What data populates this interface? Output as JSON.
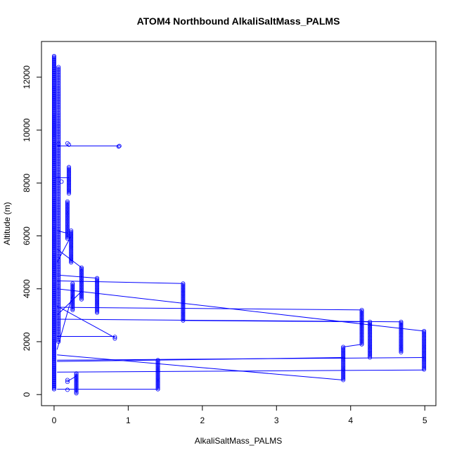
{
  "chart_data": {
    "type": "scatter",
    "title": "ATOM4 Northbound AlkaliSaltMass_PALMS",
    "xlabel": "AlkaliSaltMass_PALMS",
    "ylabel": "Altitude (m)",
    "xlim": [
      -0.17,
      5.15
    ],
    "ylim": [
      -420,
      13350
    ],
    "xticks": [
      0,
      1,
      2,
      3,
      4,
      5
    ],
    "yticks": [
      0,
      2000,
      4000,
      6000,
      8000,
      10000,
      12000
    ],
    "grid": false,
    "legend": "none",
    "color": "#0000ff",
    "marker": "open-circle",
    "connected_lines": true,
    "clusters": [
      {
        "x": 0.0,
        "y_min": 200,
        "y_max": 12800,
        "step": 40
      },
      {
        "x": 0.06,
        "y_min": 2000,
        "y_max": 12400,
        "step": 60
      },
      {
        "x": 0.2,
        "y_min": 7600,
        "y_max": 8600,
        "step": 50
      },
      {
        "x": 0.18,
        "y_min": 5900,
        "y_max": 7300,
        "step": 50
      },
      {
        "x": 0.23,
        "y_min": 5000,
        "y_max": 6200,
        "step": 50
      },
      {
        "x": 0.25,
        "y_min": 3200,
        "y_max": 4200,
        "step": 50
      },
      {
        "x": 0.37,
        "y_min": 3600,
        "y_max": 4800,
        "step": 50
      },
      {
        "x": 0.58,
        "y_min": 3100,
        "y_max": 4400,
        "step": 50
      },
      {
        "x": 0.3,
        "y_min": 50,
        "y_max": 800,
        "step": 50
      },
      {
        "x": 1.4,
        "y_min": 200,
        "y_max": 1300,
        "step": 50
      },
      {
        "x": 1.74,
        "y_min": 2800,
        "y_max": 4200,
        "step": 50
      },
      {
        "x": 3.9,
        "y_min": 550,
        "y_max": 1800,
        "step": 50
      },
      {
        "x": 4.15,
        "y_min": 1900,
        "y_max": 3200,
        "step": 50
      },
      {
        "x": 4.26,
        "y_min": 1400,
        "y_max": 2750,
        "step": 50
      },
      {
        "x": 4.68,
        "y_min": 1600,
        "y_max": 2750,
        "step": 50
      },
      {
        "x": 4.99,
        "y_min": 950,
        "y_max": 2400,
        "step": 50
      }
    ],
    "points": [
      {
        "x": 0.88,
        "y": 9400
      },
      {
        "x": 0.87,
        "y": 9380
      },
      {
        "x": 0.2,
        "y": 9450
      },
      {
        "x": 0.18,
        "y": 9500
      },
      {
        "x": 0.1,
        "y": 8050
      },
      {
        "x": 0.82,
        "y": 2180
      },
      {
        "x": 0.82,
        "y": 2120
      },
      {
        "x": 0.18,
        "y": 550
      },
      {
        "x": 0.18,
        "y": 480
      },
      {
        "x": 0.18,
        "y": 180
      },
      {
        "x": 0.06,
        "y": 9480
      }
    ],
    "lines": [
      [
        {
          "x": 0.05,
          "y": 9400
        },
        {
          "x": 0.88,
          "y": 9400
        }
      ],
      [
        {
          "x": 0.02,
          "y": 8200
        },
        {
          "x": 0.2,
          "y": 8200
        }
      ],
      [
        {
          "x": 0.04,
          "y": 4520
        },
        {
          "x": 0.58,
          "y": 4400
        }
      ],
      [
        {
          "x": 0.04,
          "y": 4300
        },
        {
          "x": 1.74,
          "y": 4200
        }
      ],
      [
        {
          "x": 0.04,
          "y": 4000
        },
        {
          "x": 4.99,
          "y": 2400
        }
      ],
      [
        {
          "x": 0.04,
          "y": 3350
        },
        {
          "x": 0.82,
          "y": 2150
        }
      ],
      [
        {
          "x": 0.04,
          "y": 3300
        },
        {
          "x": 4.15,
          "y": 3200
        }
      ],
      [
        {
          "x": 0.04,
          "y": 2850
        },
        {
          "x": 4.68,
          "y": 2750
        }
      ],
      [
        {
          "x": 1.74,
          "y": 2800
        },
        {
          "x": 4.26,
          "y": 2750
        }
      ],
      [
        {
          "x": 0.04,
          "y": 2200
        },
        {
          "x": 0.82,
          "y": 2200
        }
      ],
      [
        {
          "x": 0.04,
          "y": 1500
        },
        {
          "x": 3.9,
          "y": 550
        }
      ],
      [
        {
          "x": 0.04,
          "y": 1300
        },
        {
          "x": 4.99,
          "y": 1400
        }
      ],
      [
        {
          "x": 0.04,
          "y": 1250
        },
        {
          "x": 3.9,
          "y": 1400
        }
      ],
      [
        {
          "x": 0.04,
          "y": 850
        },
        {
          "x": 4.99,
          "y": 930
        }
      ],
      [
        {
          "x": 0.04,
          "y": 200
        },
        {
          "x": 1.4,
          "y": 200
        }
      ],
      [
        {
          "x": 0.04,
          "y": 3000
        },
        {
          "x": 0.37,
          "y": 3900
        }
      ],
      [
        {
          "x": 0.04,
          "y": 1700
        },
        {
          "x": 0.25,
          "y": 3800
        }
      ],
      [
        {
          "x": 0.04,
          "y": 5000
        },
        {
          "x": 0.23,
          "y": 6000
        }
      ],
      [
        {
          "x": 0.04,
          "y": 6200
        },
        {
          "x": 0.18,
          "y": 6100
        }
      ],
      [
        {
          "x": 0.04,
          "y": 5500
        },
        {
          "x": 0.37,
          "y": 4800
        }
      ],
      [
        {
          "x": 3.9,
          "y": 1800
        },
        {
          "x": 4.15,
          "y": 1900
        }
      ],
      [
        {
          "x": 0.3,
          "y": 700
        },
        {
          "x": 0.18,
          "y": 500
        }
      ]
    ]
  }
}
